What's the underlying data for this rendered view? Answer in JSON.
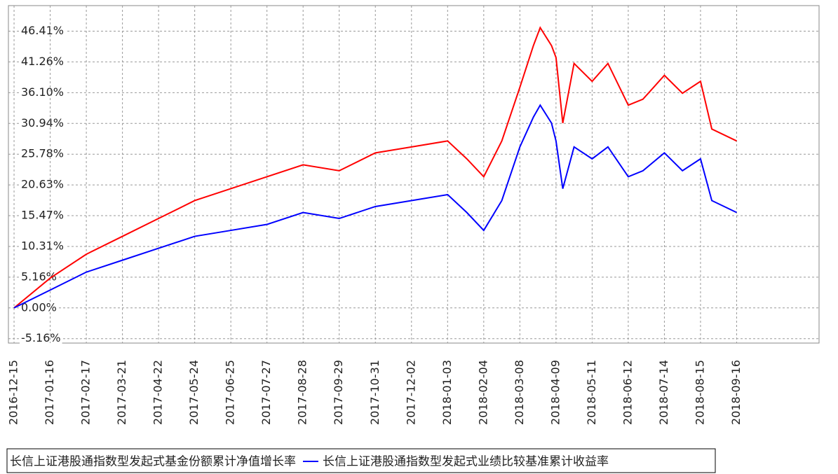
{
  "chart_data": {
    "type": "line",
    "x": [
      "2016-12-15",
      "2017-01-16",
      "2017-02-17",
      "2017-03-21",
      "2017-04-22",
      "2017-05-24",
      "2017-06-25",
      "2017-07-27",
      "2017-08-28",
      "2017-09-29",
      "2017-10-31",
      "2017-12-02",
      "2018-01-03",
      "2018-01-20",
      "2018-02-04",
      "2018-02-20",
      "2018-03-08",
      "2018-03-20",
      "2018-03-26",
      "2018-04-05",
      "2018-04-09",
      "2018-04-15",
      "2018-04-25",
      "2018-05-11",
      "2018-05-25",
      "2018-06-12",
      "2018-06-25",
      "2018-07-14",
      "2018-07-30",
      "2018-08-15",
      "2018-08-25",
      "2018-09-16"
    ],
    "series": [
      {
        "name": "长信上证港股通指数型发起式基金份额累计净值增长率",
        "color": "#ff0000",
        "values": [
          0,
          5,
          9,
          12,
          15,
          18,
          20,
          22,
          24,
          23,
          26,
          27,
          28,
          25,
          22,
          28,
          37,
          44,
          47,
          44,
          42,
          31,
          41,
          38,
          41,
          34,
          35,
          39,
          36,
          38,
          30,
          28
        ]
      },
      {
        "name": "长信上证港股通指数型发起式业绩比较基准累计收益率",
        "color": "#0000ff",
        "values": [
          0,
          3,
          6,
          8,
          10,
          12,
          13,
          14,
          16,
          15,
          17,
          18,
          19,
          16,
          13,
          18,
          27,
          32,
          34,
          31,
          28,
          20,
          27,
          25,
          27,
          22,
          23,
          26,
          23,
          25,
          18,
          16
        ]
      }
    ],
    "xlim": [
      "2016-12-10",
      "2018-11-28"
    ],
    "xticks": [
      "2016-12-15",
      "2017-01-16",
      "2017-02-17",
      "2017-03-21",
      "2017-04-22",
      "2017-05-24",
      "2017-06-25",
      "2017-07-27",
      "2017-08-28",
      "2017-09-29",
      "2017-10-31",
      "2017-12-02",
      "2018-01-03",
      "2018-02-04",
      "2018-03-08",
      "2018-04-09",
      "2018-05-11",
      "2018-06-12",
      "2018-07-14",
      "2018-08-15",
      "2018-09-16"
    ],
    "ylim": [
      -5.9,
      50.7
    ],
    "yticks": [
      {
        "value": -5.16,
        "label": "-5.16%"
      },
      {
        "value": 0,
        "label": "0.00%"
      },
      {
        "value": 5.16,
        "label": "5.16%"
      },
      {
        "value": 10.31,
        "label": "10.31%"
      },
      {
        "value": 15.47,
        "label": "15.47%"
      },
      {
        "value": 20.63,
        "label": "20.63%"
      },
      {
        "value": 25.78,
        "label": "25.78%"
      },
      {
        "value": 30.94,
        "label": "30.94%"
      },
      {
        "value": 36.1,
        "label": "36.10%"
      },
      {
        "value": 41.26,
        "label": "41.26%"
      },
      {
        "value": 46.41,
        "label": "46.41%"
      }
    ],
    "grid": true
  }
}
